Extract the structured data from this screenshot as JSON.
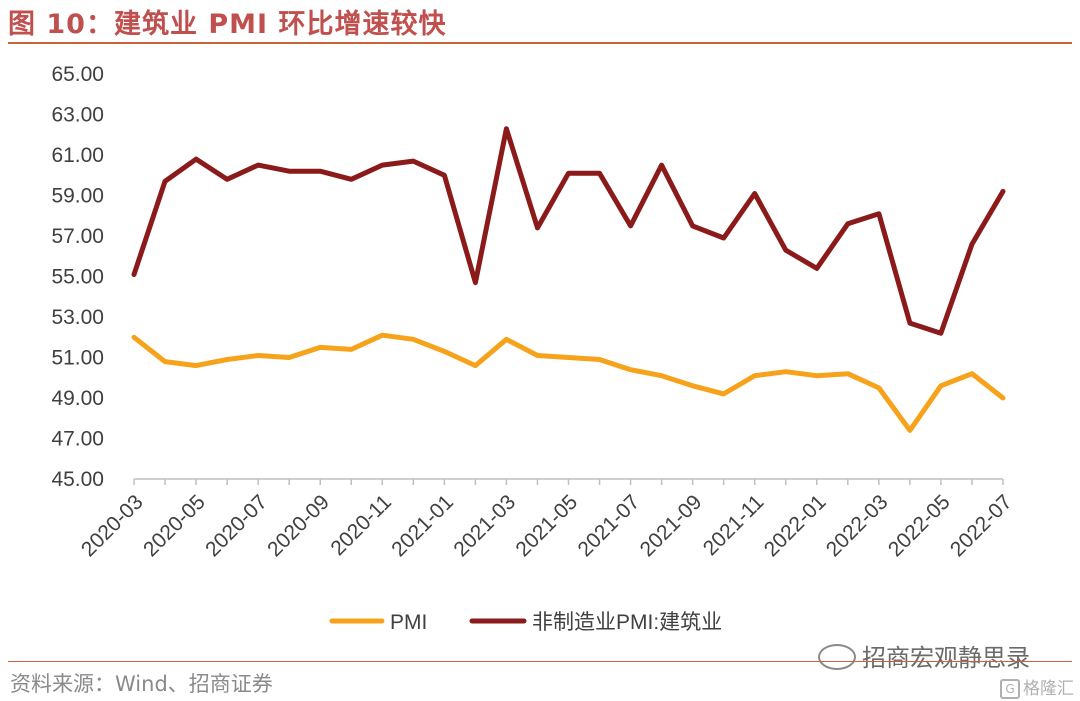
{
  "figure": {
    "title": "图 10：建筑业 PMI 环比增速较快",
    "source": "资料来源：Wind、招商证券",
    "watermark": "招商宏观静思录",
    "corner_watermark": "格隆汇"
  },
  "colors": {
    "title": "#c0504d",
    "rule": "#c8643c",
    "pmi": "#f7a21b",
    "construction": "#8b1a1a"
  },
  "chart_data": {
    "type": "line",
    "title": "",
    "xlabel": "",
    "ylabel": "",
    "ylim": [
      45,
      65
    ],
    "yticks": [
      "45.00",
      "47.00",
      "49.00",
      "51.00",
      "53.00",
      "55.00",
      "57.00",
      "59.00",
      "61.00",
      "63.00",
      "65.00"
    ],
    "xtick_labels": [
      "2020-03",
      "2020-05",
      "2020-07",
      "2020-09",
      "2020-11",
      "2021-01",
      "2021-03",
      "2021-05",
      "2021-07",
      "2021-09",
      "2021-11",
      "2022-01",
      "2022-03",
      "2022-05",
      "2022-07"
    ],
    "x": [
      "2020-03",
      "2020-04",
      "2020-05",
      "2020-06",
      "2020-07",
      "2020-08",
      "2020-09",
      "2020-10",
      "2020-11",
      "2020-12",
      "2021-01",
      "2021-02",
      "2021-03",
      "2021-04",
      "2021-05",
      "2021-06",
      "2021-07",
      "2021-08",
      "2021-09",
      "2021-10",
      "2021-11",
      "2021-12",
      "2022-01",
      "2022-02",
      "2022-03",
      "2022-04",
      "2022-05",
      "2022-06",
      "2022-07"
    ],
    "series": [
      {
        "name": "PMI",
        "color": "#f7a21b",
        "values": [
          52.0,
          50.8,
          50.6,
          50.9,
          51.1,
          51.0,
          51.5,
          51.4,
          52.1,
          51.9,
          51.3,
          50.6,
          51.9,
          51.1,
          51.0,
          50.9,
          50.4,
          50.1,
          49.6,
          49.2,
          50.1,
          50.3,
          50.1,
          50.2,
          49.5,
          47.4,
          49.6,
          50.2,
          49.0
        ]
      },
      {
        "name": "非制造业PMI:建筑业",
        "color": "#8b1a1a",
        "values": [
          55.1,
          59.7,
          60.8,
          59.8,
          60.5,
          60.2,
          60.2,
          59.8,
          60.5,
          60.7,
          60.0,
          54.7,
          62.3,
          57.4,
          60.1,
          60.1,
          57.5,
          60.5,
          57.5,
          56.9,
          59.1,
          56.3,
          55.4,
          57.6,
          58.1,
          52.7,
          52.2,
          56.6,
          59.2
        ]
      }
    ],
    "legend": "bottom",
    "grid": false
  }
}
